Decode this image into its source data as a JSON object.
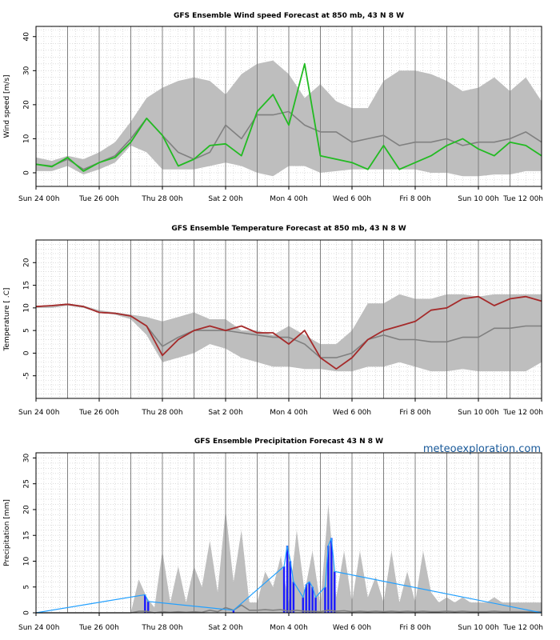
{
  "brand": "meteoexploration.com",
  "x_tick_labels": [
    "Sun 24 00h",
    "Tue 26 00h",
    "Thu 28 00h",
    "Sat  2 00h",
    "Mon  4 00h",
    "Wed  6 00h",
    "Fri  8 00h",
    "Sun 10 00h",
    "Tue 12 00h"
  ],
  "colors": {
    "band": "#bebebe",
    "mean": "#808080",
    "wind": "#22bb22",
    "temp": "#a52a2a",
    "precip_bar": "#1a1aff",
    "precip_line": "#22a0ff",
    "grid_major": "#808080",
    "grid_minor": "#c8c8c8"
  },
  "chart_data": [
    {
      "type": "area",
      "title": "GFS Ensemble Wind speed Forecast at 850 mb, 43 N 8 W",
      "ylabel": "Wind speed [m/s]",
      "xlim": [
        0,
        16
      ],
      "ylim": [
        -4,
        43
      ],
      "y_ticks": [
        0,
        10,
        20,
        30,
        40
      ],
      "x": [
        0,
        0.5,
        1,
        1.5,
        2,
        2.5,
        3,
        3.5,
        4,
        4.5,
        5,
        5.5,
        6,
        6.5,
        7,
        7.5,
        8,
        8.5,
        9,
        9.5,
        10,
        10.5,
        11,
        11.5,
        12,
        12.5,
        13,
        13.5,
        14,
        14.5,
        15,
        15.5,
        16
      ],
      "series": [
        {
          "name": "ensemble range upper",
          "values": [
            4.5,
            3.5,
            5,
            4,
            6,
            9,
            15,
            22,
            25,
            27,
            28,
            27,
            23,
            29,
            32,
            33,
            29,
            22,
            26,
            21,
            19,
            19,
            27,
            30,
            30,
            29,
            27,
            24,
            25,
            28,
            24,
            28,
            21
          ]
        },
        {
          "name": "ensemble range lower",
          "values": [
            0.5,
            0.5,
            2,
            -0.5,
            1,
            3,
            8,
            6,
            1,
            1,
            1,
            2,
            3,
            2,
            0,
            -1,
            2,
            2,
            0,
            0.5,
            1,
            1,
            1,
            1,
            1,
            0,
            0,
            -1,
            -1,
            -0.5,
            -0.5,
            0.5,
            0.5
          ]
        },
        {
          "name": "ensemble mean",
          "values": [
            2.5,
            2,
            4,
            1,
            3,
            5,
            10,
            16,
            11,
            6,
            4,
            6,
            14,
            10,
            17,
            17,
            18,
            14,
            12,
            12,
            9,
            10,
            11,
            8,
            9,
            9,
            10,
            8,
            9,
            9,
            10,
            12,
            9
          ]
        },
        {
          "name": "control run",
          "values": [
            2.5,
            1.8,
            4.5,
            0.5,
            3,
            4.5,
            9,
            16,
            11,
            2,
            4,
            8,
            8.5,
            5,
            18,
            23,
            14,
            32,
            5,
            4,
            3,
            1,
            8,
            1,
            3,
            5,
            8,
            10,
            7,
            5,
            9,
            8,
            5
          ]
        }
      ]
    },
    {
      "type": "area",
      "title": "GFS Ensemble Temperature Forecast at 850 mb, 43 N 8 W",
      "ylabel": "Temperature [ .C]",
      "xlim": [
        0,
        16
      ],
      "ylim": [
        -10,
        25
      ],
      "y_ticks": [
        -5,
        0,
        5,
        10,
        15,
        20
      ],
      "x": [
        0,
        0.5,
        1,
        1.5,
        2,
        2.5,
        3,
        3.5,
        4,
        4.5,
        5,
        5.5,
        6,
        6.5,
        7,
        7.5,
        8,
        8.5,
        9,
        9.5,
        10,
        10.5,
        11,
        11.5,
        12,
        12.5,
        13,
        13.5,
        14,
        14.5,
        15,
        15.5,
        16
      ],
      "series": [
        {
          "name": "ensemble range upper",
          "values": [
            10.5,
            10.5,
            11,
            10.5,
            9.5,
            9,
            8.5,
            8,
            7,
            8,
            9,
            7.5,
            7.5,
            5,
            5,
            4,
            6,
            4,
            2,
            2,
            5,
            11,
            11,
            13,
            12,
            12,
            13,
            13,
            12.5,
            13,
            13,
            13,
            13
          ]
        },
        {
          "name": "ensemble range lower",
          "values": [
            10,
            10,
            10.5,
            10,
            9,
            8.5,
            7.5,
            4,
            -2,
            -1,
            0,
            2,
            1,
            -1,
            -2,
            -3,
            -3,
            -3.5,
            -3.5,
            -4,
            -4,
            -3,
            -3,
            -2,
            -3,
            -4,
            -4,
            -3.5,
            -4,
            -4,
            -4,
            -4,
            -2
          ]
        },
        {
          "name": "ensemble mean",
          "values": [
            10.3,
            10.5,
            10.8,
            10.3,
            9,
            8.8,
            8.2,
            6,
            1.5,
            3.5,
            5,
            5,
            5,
            4.5,
            4,
            3.5,
            3.5,
            2,
            -1,
            -1,
            0,
            3,
            4,
            3,
            3,
            2.5,
            2.5,
            3.5,
            3.5,
            5.5,
            5.5,
            6,
            6
          ]
        },
        {
          "name": "control run",
          "values": [
            10.3,
            10.5,
            10.8,
            10.3,
            9,
            8.8,
            8.2,
            6,
            -0.5,
            3,
            5,
            6,
            5,
            6,
            4.5,
            4.5,
            2,
            5,
            -1,
            -3.5,
            -1,
            3,
            5,
            6,
            7,
            9.5,
            10,
            12,
            12.5,
            10.5,
            12,
            12.5,
            11.5
          ]
        }
      ]
    },
    {
      "type": "area",
      "title": "GFS Ensemble Precipitation Forecast 43 N 8 W",
      "ylabel": "Precipitation [mm]",
      "xlim": [
        0,
        16
      ],
      "ylim": [
        0,
        31
      ],
      "y_ticks": [
        0,
        5,
        10,
        15,
        20,
        25,
        30
      ],
      "x": [
        0,
        0.5,
        1,
        1.5,
        2,
        2.5,
        3,
        3.25,
        3.5,
        3.75,
        4,
        4.25,
        4.5,
        4.75,
        5,
        5.25,
        5.5,
        5.75,
        6,
        6.25,
        6.5,
        6.75,
        7,
        7.25,
        7.5,
        7.75,
        8,
        8.25,
        8.5,
        8.75,
        9,
        9.25,
        9.5,
        9.75,
        10,
        10.25,
        10.5,
        10.75,
        11,
        11.25,
        11.5,
        11.75,
        12,
        12.25,
        12.5,
        12.75,
        13,
        13.25,
        13.5,
        13.75,
        14,
        14.25,
        14.5,
        14.75,
        15,
        15.25,
        15.5,
        15.75,
        16
      ],
      "series": [
        {
          "name": "ensemble range upper",
          "values": [
            0,
            0,
            0,
            0,
            0,
            0,
            0,
            6.5,
            3,
            1,
            12,
            2,
            9,
            2,
            9,
            5,
            14,
            4,
            20,
            6,
            16,
            2,
            2,
            8,
            5,
            11,
            1.5,
            16,
            4,
            12,
            1.5,
            21,
            3,
            12,
            2,
            12,
            3,
            7,
            2,
            12,
            2,
            8,
            2,
            12,
            4,
            2,
            3,
            2,
            3,
            2,
            2,
            2,
            3,
            2,
            2,
            2,
            2,
            2,
            2
          ]
        },
        {
          "name": "ensemble range lower",
          "values": [
            0,
            0,
            0,
            0,
            0,
            0,
            0,
            0,
            0,
            0,
            0,
            0,
            0,
            0,
            0,
            0,
            0,
            0,
            0,
            0,
            0,
            0,
            0,
            0,
            0,
            0,
            0,
            0,
            0,
            0,
            0,
            0,
            0,
            0,
            0,
            0,
            0,
            0,
            0,
            0,
            0,
            0,
            0,
            0,
            0,
            0,
            0,
            0,
            0,
            0,
            0,
            0,
            0,
            0,
            0,
            0,
            0,
            0,
            0
          ]
        },
        {
          "name": "ensemble mean",
          "values": [
            0,
            0,
            0,
            0,
            0,
            0,
            0,
            0.3,
            0.3,
            0,
            0.2,
            0.1,
            0.2,
            0.1,
            0.2,
            0.1,
            0.5,
            0.2,
            1,
            0.5,
            1.5,
            0.5,
            0.5,
            0.6,
            0.5,
            0.6,
            0.3,
            0.5,
            0.3,
            0.3,
            0.2,
            0.5,
            0.3,
            0.4,
            0.2,
            0.3,
            0.2,
            0.3,
            0.2,
            0.3,
            0.2,
            0.3,
            0.2,
            0.3,
            0.2,
            0.2,
            0.3,
            0.2,
            0.3,
            0.2,
            0.2,
            0.2,
            0.3,
            0.2,
            0.2,
            0.2,
            0.2,
            0.2,
            0.2
          ]
        },
        {
          "name": "control run",
          "values": [
            0,
            0,
            0,
            0,
            0,
            0,
            0,
            3.5,
            0,
            0,
            0,
            0,
            0,
            0,
            0,
            0,
            0,
            0,
            0,
            0,
            0,
            0,
            0,
            0,
            0,
            0,
            0,
            0,
            0,
            0,
            0,
            0,
            0,
            0,
            0,
            0,
            0,
            0,
            0,
            0,
            0,
            0,
            0,
            0,
            0,
            0,
            0,
            0,
            0,
            0,
            0,
            0,
            0,
            0,
            0,
            0,
            0,
            0,
            0
          ]
        }
      ],
      "control_bars": [
        {
          "x": 3.45,
          "value": 3.5
        },
        {
          "x": 3.55,
          "value": 2.2
        },
        {
          "x": 6.25,
          "value": 0.5
        },
        {
          "x": 7.85,
          "value": 9
        },
        {
          "x": 7.95,
          "value": 13
        },
        {
          "x": 8.05,
          "value": 10
        },
        {
          "x": 8.15,
          "value": 6
        },
        {
          "x": 8.45,
          "value": 3
        },
        {
          "x": 8.55,
          "value": 5.5
        },
        {
          "x": 8.65,
          "value": 6
        },
        {
          "x": 8.75,
          "value": 5
        },
        {
          "x": 8.85,
          "value": 3
        },
        {
          "x": 9.15,
          "value": 5
        },
        {
          "x": 9.25,
          "value": 13
        },
        {
          "x": 9.35,
          "value": 14.5
        },
        {
          "x": 9.45,
          "value": 8
        }
      ]
    }
  ]
}
